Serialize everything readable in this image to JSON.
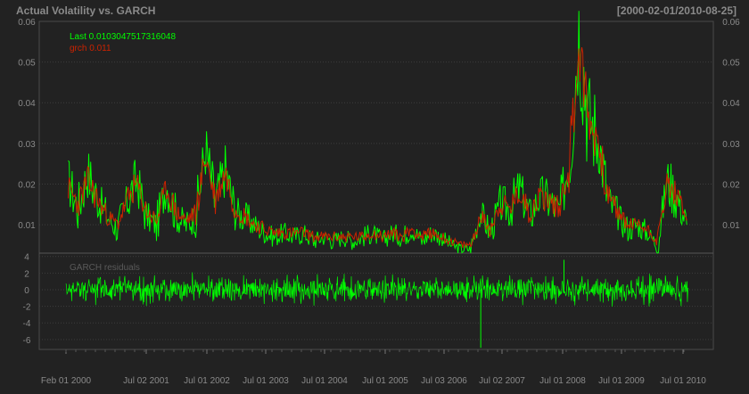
{
  "chart_data": [
    {
      "type": "line",
      "title": "Actual Volatility vs. GARCH",
      "date_range": "[2000-02-01/2010-08-25]",
      "ylim": [
        0.003,
        0.06
      ],
      "y_ticks": [
        "0.01",
        "0.02",
        "0.03",
        "0.04",
        "0.05",
        "0.06"
      ],
      "grid": true,
      "legend_placement": "top-left",
      "legend": [
        "Last 0.0103047517316048",
        "grch 0.011"
      ],
      "series": [
        {
          "name": "Last",
          "color": "#00ff00",
          "x": [
            "2000-02",
            "2000-04",
            "2000-06",
            "2000-08",
            "2000-10",
            "2000-12",
            "2001-02",
            "2001-04",
            "2001-06",
            "2001-08",
            "2001-10",
            "2001-12",
            "2002-02",
            "2002-04",
            "2002-06",
            "2002-08",
            "2002-10",
            "2002-12",
            "2003-02",
            "2003-04",
            "2003-06",
            "2003-08",
            "2003-10",
            "2003-12",
            "2004-02",
            "2004-04",
            "2004-06",
            "2004-08",
            "2004-10",
            "2004-12",
            "2005-02",
            "2005-04",
            "2005-06",
            "2005-08",
            "2005-10",
            "2005-12",
            "2006-02",
            "2006-04",
            "2006-06",
            "2006-08",
            "2006-10",
            "2006-12",
            "2007-02",
            "2007-04",
            "2007-06",
            "2007-08",
            "2007-10",
            "2007-12",
            "2008-02",
            "2008-04",
            "2008-06",
            "2008-08",
            "2008-10",
            "2008-12",
            "2009-02",
            "2009-04",
            "2009-06",
            "2009-08",
            "2009-10",
            "2009-12",
            "2010-02",
            "2010-04",
            "2010-06",
            "2010-08"
          ],
          "y": [
            0.021,
            0.014,
            0.023,
            0.016,
            0.012,
            0.009,
            0.016,
            0.021,
            0.012,
            0.01,
            0.02,
            0.012,
            0.01,
            0.012,
            0.029,
            0.015,
            0.024,
            0.013,
            0.012,
            0.01,
            0.008,
            0.007,
            0.008,
            0.007,
            0.008,
            0.006,
            0.007,
            0.006,
            0.007,
            0.006,
            0.007,
            0.008,
            0.006,
            0.008,
            0.007,
            0.009,
            0.006,
            0.008,
            0.007,
            0.005,
            0.004,
            0.004,
            0.013,
            0.008,
            0.015,
            0.014,
            0.019,
            0.012,
            0.017,
            0.016,
            0.013,
            0.026,
            0.058,
            0.037,
            0.031,
            0.016,
            0.012,
            0.009,
            0.01,
            0.008,
            0.005,
            0.021,
            0.017,
            0.01
          ]
        },
        {
          "name": "grch",
          "color": "#cc2200",
          "x": [
            "2000-02",
            "2000-04",
            "2000-06",
            "2000-08",
            "2000-10",
            "2000-12",
            "2001-02",
            "2001-04",
            "2001-06",
            "2001-08",
            "2001-10",
            "2001-12",
            "2002-02",
            "2002-04",
            "2002-06",
            "2002-08",
            "2002-10",
            "2002-12",
            "2003-02",
            "2003-04",
            "2003-06",
            "2003-08",
            "2003-10",
            "2003-12",
            "2004-02",
            "2004-04",
            "2004-06",
            "2004-08",
            "2004-10",
            "2004-12",
            "2005-02",
            "2005-04",
            "2005-06",
            "2005-08",
            "2005-10",
            "2005-12",
            "2006-02",
            "2006-04",
            "2006-06",
            "2006-08",
            "2006-10",
            "2006-12",
            "2007-02",
            "2007-04",
            "2007-06",
            "2007-08",
            "2007-10",
            "2007-12",
            "2008-02",
            "2008-04",
            "2008-06",
            "2008-08",
            "2008-10",
            "2008-12",
            "2009-02",
            "2009-04",
            "2009-06",
            "2009-08",
            "2009-10",
            "2009-12",
            "2010-02",
            "2010-04",
            "2010-06",
            "2010-08"
          ],
          "y": [
            0.019,
            0.015,
            0.021,
            0.016,
            0.012,
            0.01,
            0.016,
            0.02,
            0.013,
            0.011,
            0.019,
            0.013,
            0.011,
            0.013,
            0.027,
            0.016,
            0.023,
            0.014,
            0.012,
            0.01,
            0.009,
            0.008,
            0.008,
            0.008,
            0.008,
            0.007,
            0.007,
            0.007,
            0.007,
            0.007,
            0.007,
            0.008,
            0.007,
            0.008,
            0.007,
            0.009,
            0.007,
            0.008,
            0.007,
            0.006,
            0.005,
            0.005,
            0.012,
            0.009,
            0.015,
            0.014,
            0.018,
            0.013,
            0.017,
            0.016,
            0.014,
            0.025,
            0.053,
            0.036,
            0.03,
            0.017,
            0.013,
            0.01,
            0.01,
            0.009,
            0.006,
            0.02,
            0.017,
            0.011
          ]
        }
      ]
    },
    {
      "type": "line",
      "title": "GARCH residuals",
      "ylim": [
        -7.2,
        4.4
      ],
      "y_ticks": [
        "4",
        "2",
        "0",
        "-2",
        "-4",
        "-6"
      ],
      "grid": true,
      "series": [
        {
          "name": "GARCH residuals",
          "color": "#00ff00",
          "range_approx": [
            -7,
            3.6
          ],
          "notable_points": [
            {
              "x": "2007-02",
              "y": -7
            },
            {
              "x": "2008-07",
              "y": 3.6
            }
          ]
        }
      ]
    }
  ],
  "x_axis_labels": [
    "Feb 01 2000",
    "Jul 02 2001",
    "Jul 01 2002",
    "Jul 01 2003",
    "Jul 01 2004",
    "Jul 01 2005",
    "Jul 03 2006",
    "Jul 02 2007",
    "Jul 01 2008",
    "Jul 01 2009",
    "Jul 01 2010"
  ],
  "colors": {
    "background": "#222222",
    "grid": "#3d3d3d",
    "axis_text": "#8a8a8a",
    "last": "#00ff00",
    "grch": "#cc2200"
  }
}
